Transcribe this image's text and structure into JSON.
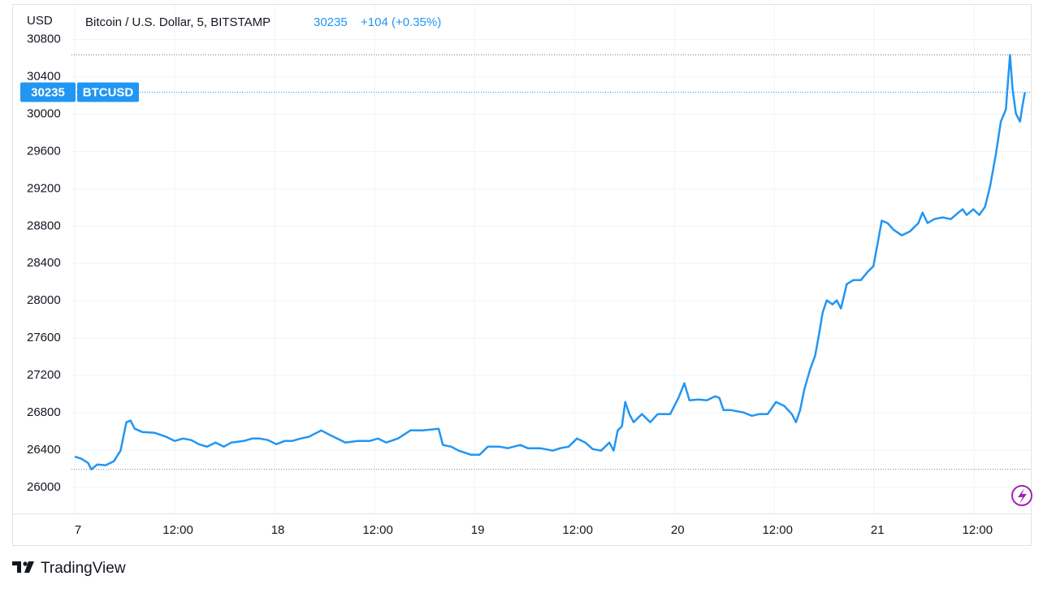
{
  "chart_data": {
    "type": "line",
    "y_unit": "USD",
    "title": "Bitcoin / U.S. Dollar, 5, BITSTAMP",
    "change": "+104 (+0.35%)",
    "symbol": "BTCUSD",
    "watermark": "TradingView",
    "ylim": [
      25720,
      31180
    ],
    "yticks": [
      26000,
      26400,
      26800,
      27200,
      27600,
      28000,
      28400,
      28800,
      29200,
      29600,
      30000,
      30400,
      30800
    ],
    "xlim": [
      0,
      114.7
    ],
    "xticks": [
      {
        "value": 0,
        "label": "7"
      },
      {
        "value": 12,
        "label": "12:00"
      },
      {
        "value": 24,
        "label": "18"
      },
      {
        "value": 36,
        "label": "12:00"
      },
      {
        "value": 48,
        "label": "19"
      },
      {
        "value": 60,
        "label": "12:00"
      },
      {
        "value": 72,
        "label": "20"
      },
      {
        "value": 84,
        "label": "12:00"
      },
      {
        "value": 96,
        "label": "21"
      },
      {
        "value": 108,
        "label": "12:00"
      }
    ],
    "grid": true,
    "x": [
      0,
      0.8,
      1.6,
      2.0,
      2.7,
      3.7,
      4.7,
      5.5,
      5.9,
      6.2,
      6.7,
      7.2,
      8.1,
      9.6,
      11.0,
      12.0,
      13.0,
      14.0,
      14.9,
      15.9,
      16.9,
      17.9,
      18.8,
      20.3,
      21.3,
      22.2,
      23.2,
      24.2,
      25.2,
      26.1,
      27.1,
      28.1,
      29.6,
      30.5,
      31.5,
      32.5,
      34.0,
      35.4,
      36.4,
      37.4,
      38.8,
      40.3,
      41.8,
      43.7,
      44.2,
      45.2,
      46.1,
      47.6,
      48.6,
      49.6,
      51.0,
      52.0,
      53.5,
      54.4,
      55.9,
      57.4,
      58.3,
      59.3,
      60.3,
      61.3,
      62.2,
      63.2,
      64.2,
      64.7,
      65.2,
      65.7,
      66.1,
      66.6,
      67.1,
      68.1,
      69.1,
      70.0,
      71.5,
      72.5,
      73.2,
      73.8,
      74.9,
      75.9,
      76.9,
      77.4,
      77.9,
      78.8,
      80.3,
      81.3,
      82.2,
      83.2,
      84.2,
      85.2,
      86.1,
      86.6,
      87.1,
      87.6,
      88.3,
      88.9,
      89.4,
      89.8,
      90.3,
      91.0,
      91.5,
      92.0,
      92.7,
      93.5,
      94.4,
      95.2,
      95.9,
      96.4,
      96.9,
      97.6,
      98.3,
      99.3,
      100.3,
      101.3,
      101.8,
      102.4,
      103.2,
      104.2,
      105.2,
      106.1,
      106.6,
      107.1,
      107.9,
      108.6,
      109.3,
      109.9,
      110.6,
      111.2,
      111.8,
      112.1,
      112.3,
      112.6,
      113.0,
      113.5,
      113.8,
      114.1
    ],
    "series": [
      {
        "color": "#2196f3",
        "values": [
          26330,
          26306,
          26262,
          26192,
          26245,
          26236,
          26280,
          26393,
          26567,
          26698,
          26715,
          26628,
          26593,
          26584,
          26541,
          26497,
          26523,
          26506,
          26462,
          26436,
          26480,
          26436,
          26480,
          26497,
          26523,
          26523,
          26506,
          26462,
          26497,
          26497,
          26523,
          26541,
          26610,
          26567,
          26523,
          26480,
          26497,
          26497,
          26523,
          26480,
          26523,
          26610,
          26610,
          26628,
          26454,
          26436,
          26393,
          26349,
          26349,
          26436,
          26436,
          26419,
          26454,
          26419,
          26419,
          26393,
          26419,
          26436,
          26523,
          26480,
          26410,
          26393,
          26480,
          26393,
          26610,
          26654,
          26915,
          26785,
          26698,
          26785,
          26698,
          26785,
          26785,
          26959,
          27116,
          26933,
          26942,
          26933,
          26976,
          26959,
          26828,
          26828,
          26802,
          26767,
          26785,
          26785,
          26915,
          26872,
          26785,
          26698,
          26828,
          27046,
          27264,
          27412,
          27656,
          27873,
          28004,
          27961,
          28004,
          27917,
          28178,
          28222,
          28222,
          28309,
          28370,
          28614,
          28858,
          28832,
          28762,
          28701,
          28744,
          28832,
          28945,
          28832,
          28875,
          28893,
          28875,
          28945,
          28980,
          28919,
          28980,
          28919,
          29006,
          29223,
          29572,
          29920,
          30051,
          30399,
          30635,
          30269,
          30007,
          29920,
          30095,
          30235
        ]
      }
    ]
  }
}
